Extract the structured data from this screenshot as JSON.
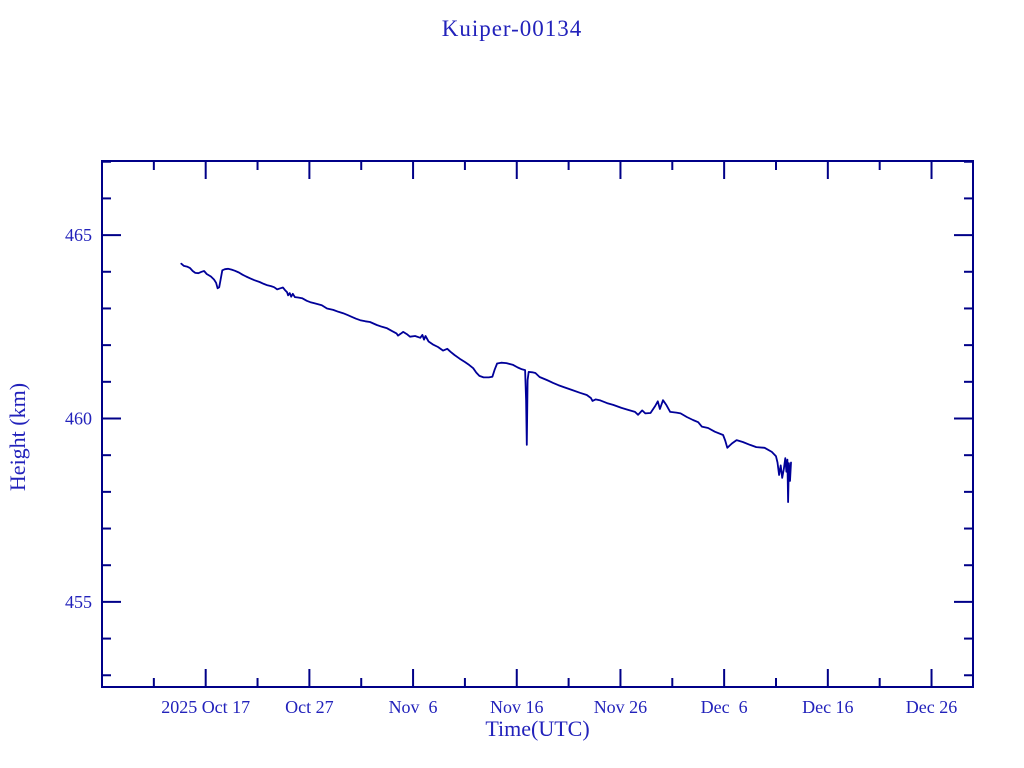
{
  "window": {
    "background": "#ffffff"
  },
  "chart_data": {
    "type": "line",
    "title": "Kuiper-00134",
    "xlabel": "Time(UTC)",
    "ylabel": "Height (km)",
    "legend": "none",
    "grid": "off",
    "x_axis": {
      "unit": "days since 2025-10-07 00:00 UTC",
      "lim": [
        0,
        84
      ],
      "major_ticks": [
        {
          "d": 10,
          "label": "2025 Oct 17"
        },
        {
          "d": 20,
          "label": "Oct 27"
        },
        {
          "d": 30,
          "label": "Nov  6"
        },
        {
          "d": 40,
          "label": "Nov 16"
        },
        {
          "d": 50,
          "label": "Nov 26"
        },
        {
          "d": 60,
          "label": "Dec  6"
        },
        {
          "d": 70,
          "label": "Dec 16"
        },
        {
          "d": 80,
          "label": "Dec 26"
        }
      ],
      "minor_ticks": [
        5,
        15,
        25,
        35,
        45,
        55,
        65,
        75
      ]
    },
    "y_axis": {
      "lim": [
        452.68,
        467.02
      ],
      "major_ticks": [
        {
          "v": 455,
          "label": "455"
        },
        {
          "v": 460,
          "label": "460"
        },
        {
          "v": 465,
          "label": "465"
        }
      ],
      "minor_tick_step": 1
    },
    "colors": {
      "line": "#000099",
      "axis": "#000088",
      "text": "#2222bb"
    },
    "series": [
      {
        "name": "Kuiper-00134 orbit height (km)",
        "points": [
          [
            7.65,
            464.22
          ],
          [
            7.9,
            464.16
          ],
          [
            8.2,
            464.14
          ],
          [
            8.5,
            464.1
          ],
          [
            8.75,
            464.02
          ],
          [
            9.0,
            463.97
          ],
          [
            9.3,
            463.96
          ],
          [
            9.6,
            464.0
          ],
          [
            9.85,
            464.02
          ],
          [
            10.1,
            463.94
          ],
          [
            10.5,
            463.87
          ],
          [
            10.8,
            463.79
          ],
          [
            11.0,
            463.7
          ],
          [
            11.15,
            463.55
          ],
          [
            11.3,
            463.58
          ],
          [
            11.45,
            463.8
          ],
          [
            11.6,
            464.04
          ],
          [
            11.85,
            464.07
          ],
          [
            12.15,
            464.08
          ],
          [
            12.5,
            464.06
          ],
          [
            12.8,
            464.03
          ],
          [
            13.2,
            463.98
          ],
          [
            13.55,
            463.92
          ],
          [
            13.9,
            463.87
          ],
          [
            14.3,
            463.82
          ],
          [
            14.7,
            463.77
          ],
          [
            15.2,
            463.72
          ],
          [
            15.6,
            463.67
          ],
          [
            15.95,
            463.63
          ],
          [
            16.3,
            463.61
          ],
          [
            16.6,
            463.58
          ],
          [
            16.9,
            463.52
          ],
          [
            17.2,
            463.55
          ],
          [
            17.45,
            463.57
          ],
          [
            17.65,
            463.5
          ],
          [
            17.85,
            463.44
          ],
          [
            17.95,
            463.36
          ],
          [
            18.1,
            463.42
          ],
          [
            18.25,
            463.32
          ],
          [
            18.4,
            463.4
          ],
          [
            18.6,
            463.31
          ],
          [
            18.9,
            463.3
          ],
          [
            19.3,
            463.28
          ],
          [
            19.75,
            463.21
          ],
          [
            20.1,
            463.17
          ],
          [
            20.4,
            463.15
          ],
          [
            20.8,
            463.12
          ],
          [
            21.2,
            463.09
          ],
          [
            21.7,
            463.0
          ],
          [
            22.3,
            462.96
          ],
          [
            22.8,
            462.91
          ],
          [
            23.25,
            462.87
          ],
          [
            23.7,
            462.82
          ],
          [
            24.1,
            462.77
          ],
          [
            24.5,
            462.72
          ],
          [
            24.9,
            462.68
          ],
          [
            25.4,
            462.65
          ],
          [
            25.85,
            462.63
          ],
          [
            26.5,
            462.55
          ],
          [
            27.0,
            462.5
          ],
          [
            27.5,
            462.46
          ],
          [
            28.0,
            462.38
          ],
          [
            28.4,
            462.32
          ],
          [
            28.55,
            462.26
          ],
          [
            28.8,
            462.31
          ],
          [
            29.05,
            462.36
          ],
          [
            29.4,
            462.3
          ],
          [
            29.7,
            462.23
          ],
          [
            30.2,
            462.25
          ],
          [
            30.7,
            462.2
          ],
          [
            30.9,
            462.28
          ],
          [
            31.05,
            462.15
          ],
          [
            31.2,
            462.25
          ],
          [
            31.5,
            462.1
          ],
          [
            31.9,
            462.02
          ],
          [
            32.4,
            461.95
          ],
          [
            32.9,
            461.85
          ],
          [
            33.3,
            461.9
          ],
          [
            33.6,
            461.82
          ],
          [
            34.0,
            461.73
          ],
          [
            34.5,
            461.63
          ],
          [
            35.0,
            461.54
          ],
          [
            35.4,
            461.46
          ],
          [
            35.8,
            461.37
          ],
          [
            36.1,
            461.25
          ],
          [
            36.4,
            461.16
          ],
          [
            36.8,
            461.12
          ],
          [
            37.3,
            461.12
          ],
          [
            37.65,
            461.14
          ],
          [
            37.85,
            461.32
          ],
          [
            38.1,
            461.5
          ],
          [
            38.5,
            461.52
          ],
          [
            39.0,
            461.51
          ],
          [
            39.65,
            461.46
          ],
          [
            40.1,
            461.39
          ],
          [
            40.5,
            461.34
          ],
          [
            40.8,
            461.32
          ],
          [
            40.9,
            460.5
          ],
          [
            40.97,
            459.28
          ],
          [
            41.05,
            461.05
          ],
          [
            41.15,
            461.27
          ],
          [
            41.5,
            461.26
          ],
          [
            41.8,
            461.24
          ],
          [
            42.2,
            461.13
          ],
          [
            42.9,
            461.05
          ],
          [
            43.5,
            460.97
          ],
          [
            44.0,
            460.91
          ],
          [
            44.5,
            460.86
          ],
          [
            45.3,
            460.78
          ],
          [
            46.1,
            460.7
          ],
          [
            46.75,
            460.64
          ],
          [
            47.15,
            460.56
          ],
          [
            47.3,
            460.48
          ],
          [
            47.6,
            460.52
          ],
          [
            48.0,
            460.5
          ],
          [
            48.7,
            460.42
          ],
          [
            49.3,
            460.37
          ],
          [
            50.1,
            460.29
          ],
          [
            50.7,
            460.24
          ],
          [
            51.4,
            460.18
          ],
          [
            51.7,
            460.1
          ],
          [
            52.1,
            460.22
          ],
          [
            52.4,
            460.14
          ],
          [
            52.9,
            460.15
          ],
          [
            53.35,
            460.34
          ],
          [
            53.6,
            460.47
          ],
          [
            53.8,
            460.26
          ],
          [
            54.1,
            460.5
          ],
          [
            54.4,
            460.38
          ],
          [
            54.8,
            460.18
          ],
          [
            55.4,
            460.16
          ],
          [
            55.8,
            460.14
          ],
          [
            56.4,
            460.04
          ],
          [
            57.0,
            459.96
          ],
          [
            57.5,
            459.9
          ],
          [
            57.85,
            459.78
          ],
          [
            58.45,
            459.74
          ],
          [
            59.1,
            459.64
          ],
          [
            59.9,
            459.55
          ],
          [
            60.1,
            459.4
          ],
          [
            60.3,
            459.2
          ],
          [
            60.6,
            459.28
          ],
          [
            60.8,
            459.33
          ],
          [
            61.2,
            459.41
          ],
          [
            61.8,
            459.36
          ],
          [
            62.5,
            459.28
          ],
          [
            63.1,
            459.22
          ],
          [
            63.9,
            459.2
          ],
          [
            64.6,
            459.09
          ],
          [
            65.0,
            458.97
          ],
          [
            65.15,
            458.8
          ],
          [
            65.3,
            458.46
          ],
          [
            65.45,
            458.72
          ],
          [
            65.6,
            458.38
          ],
          [
            65.75,
            458.62
          ],
          [
            65.9,
            458.92
          ],
          [
            66.0,
            458.55
          ],
          [
            66.1,
            458.88
          ],
          [
            66.17,
            457.72
          ],
          [
            66.25,
            458.78
          ],
          [
            66.35,
            458.3
          ],
          [
            66.45,
            458.8
          ]
        ]
      }
    ]
  }
}
